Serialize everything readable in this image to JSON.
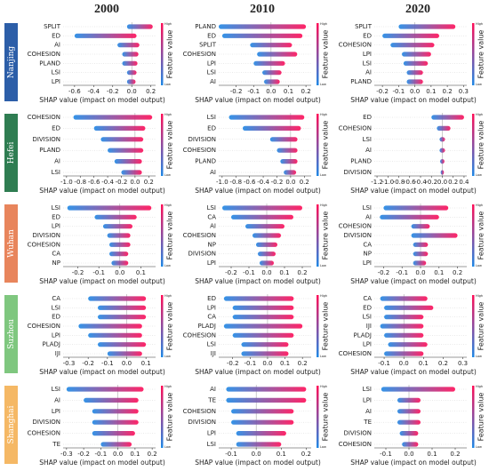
{
  "column_titles": [
    "2000",
    "2010",
    "2020"
  ],
  "row_labels": [
    {
      "text": "Nanjing",
      "color": "#2c5ea8"
    },
    {
      "text": "Hefei",
      "color": "#2f7d52"
    },
    {
      "text": "Wuhan",
      "color": "#e8855c"
    },
    {
      "text": "Suzhou",
      "color": "#7fc77f"
    },
    {
      "text": "Shanghai",
      "color": "#f5b865"
    }
  ],
  "chart_data": [
    {
      "type": "beeswarm",
      "categories": [
        "SPLIT",
        "ED",
        "AI",
        "COHESION",
        "PLAND",
        "LSI",
        "LPI"
      ],
      "values": [
        [
          -0.05,
          0.22
        ],
        [
          -0.6,
          0.05
        ],
        [
          -0.15,
          0.08
        ],
        [
          -0.1,
          0.07
        ],
        [
          -0.1,
          0.06
        ],
        [
          -0.05,
          0.05
        ],
        [
          -0.05,
          0.04
        ]
      ],
      "xlim": [
        -0.72,
        0.25
      ],
      "xticks": [
        -0.6,
        -0.4,
        -0.2,
        {
          "value": 0,
          "label": "0.0"
        },
        0.2
      ],
      "xlabel": "SHAP value (impact on model output)",
      "colorbar_label": "Feature value",
      "high": "High",
      "low": "Low",
      "colormap": [
        "#1e88e5",
        "#ff0d57"
      ]
    },
    {
      "type": "beeswarm",
      "categories": [
        "PLAND",
        "ED",
        "SPLIT",
        "COHESION",
        "LPI",
        "LSI",
        "AI"
      ],
      "values": [
        [
          -0.3,
          0.2
        ],
        [
          -0.28,
          0.18
        ],
        [
          -0.12,
          0.12
        ],
        [
          -0.08,
          0.15
        ],
        [
          -0.1,
          0.08
        ],
        [
          -0.05,
          0.06
        ],
        [
          -0.04,
          0.05
        ]
      ],
      "xlim": [
        -0.3,
        0.23
      ],
      "xticks": [
        -0.2,
        -0.1,
        {
          "value": 0,
          "label": "0.0"
        },
        0.1,
        0.2
      ],
      "xlabel": "SHAP value (impact on model output)",
      "colorbar_label": "Feature value",
      "high": "High",
      "low": "Low",
      "colormap": [
        "#1e88e5",
        "#ff0d57"
      ]
    },
    {
      "type": "beeswarm",
      "categories": [
        "SPLIT",
        "ED",
        "COHESION",
        "LPI",
        "LSI",
        "AI",
        "PLAND"
      ],
      "values": [
        [
          -0.1,
          0.25
        ],
        [
          -0.2,
          0.15
        ],
        [
          -0.15,
          0.12
        ],
        [
          -0.08,
          0.1
        ],
        [
          -0.07,
          0.08
        ],
        [
          -0.05,
          0.05
        ],
        [
          -0.05,
          0.05
        ]
      ],
      "xlim": [
        -0.25,
        0.32
      ],
      "xticks": [
        -0.2,
        -0.1,
        {
          "value": 0,
          "label": "0.0"
        },
        0.1,
        0.2,
        0.3
      ],
      "xlabel": "SHAP value (impact on model output)",
      "colorbar_label": "Feature value",
      "high": "High",
      "low": "Low",
      "colormap": [
        "#1e88e5",
        "#ff0d57"
      ]
    },
    {
      "type": "beeswarm",
      "categories": [
        "COHESION",
        "ED",
        "DIVISION",
        "PLAND",
        "AI",
        "LSI"
      ],
      "values": [
        [
          -0.9,
          0.25
        ],
        [
          -0.6,
          0.15
        ],
        [
          -0.5,
          0.12
        ],
        [
          -0.4,
          0.12
        ],
        [
          -0.3,
          0.1
        ],
        [
          -0.2,
          0.1
        ]
      ],
      "xlim": [
        -1.05,
        0.3
      ],
      "xticks": [
        {
          "value": -1,
          "label": "-1.0"
        },
        -0.8,
        -0.6,
        -0.4,
        -0.2,
        {
          "value": 0,
          "label": "0.0"
        },
        0.2
      ],
      "xlabel": "SHAP value (impact on model output)",
      "colorbar_label": "Feature value",
      "high": "High",
      "low": "Low",
      "colormap": [
        "#1e88e5",
        "#ff0d57"
      ]
    },
    {
      "type": "beeswarm",
      "categories": [
        "LSI",
        "ED",
        "DIVISION",
        "COHESION",
        "PLAND",
        "AI"
      ],
      "values": [
        [
          -0.9,
          0.2
        ],
        [
          -0.7,
          0.15
        ],
        [
          -0.3,
          0.1
        ],
        [
          -0.2,
          0.1
        ],
        [
          -0.15,
          0.1
        ],
        [
          -0.1,
          0.08
        ]
      ],
      "xlim": [
        -1.05,
        0.3
      ],
      "xticks": [
        {
          "value": -1,
          "label": "-1.0"
        },
        -0.8,
        -0.6,
        -0.4,
        -0.2,
        {
          "value": 0,
          "label": "0.0"
        },
        0.2
      ],
      "xlabel": "SHAP value (impact on model output)",
      "colorbar_label": "Feature value",
      "high": "High",
      "low": "Low",
      "colormap": [
        "#1e88e5",
        "#ff0d57"
      ]
    },
    {
      "type": "beeswarm",
      "categories": [
        "ED",
        "COHESION",
        "LSI",
        "AI",
        "PLAND",
        "DIVISION"
      ],
      "values": [
        [
          -0.2,
          0.4
        ],
        [
          -0.1,
          0.15
        ],
        [
          -0.05,
          0.05
        ],
        [
          -0.05,
          0.05
        ],
        [
          -0.04,
          0.04
        ],
        [
          -0.03,
          0.03
        ]
      ],
      "xlim": [
        -1.25,
        0.45
      ],
      "xticks": [
        -1.2,
        {
          "value": -1,
          "label": "-1.0"
        },
        -0.8,
        -0.6,
        -0.4,
        -0.2,
        {
          "value": 0,
          "label": "0.0"
        },
        0.2,
        0.4
      ],
      "xlabel": "SHAP value (impact on model output)",
      "colorbar_label": "Feature value",
      "high": "High",
      "low": "Low",
      "colormap": [
        "#1e88e5",
        "#ff0d57"
      ]
    },
    {
      "type": "beeswarm",
      "categories": [
        "LSI",
        "ED",
        "LPI",
        "DIVISION",
        "COHESION",
        "CA",
        "NP"
      ],
      "values": [
        [
          -0.25,
          0.15
        ],
        [
          -0.12,
          0.08
        ],
        [
          -0.08,
          0.06
        ],
        [
          -0.06,
          0.05
        ],
        [
          -0.05,
          0.05
        ],
        [
          -0.05,
          0.04
        ],
        [
          -0.04,
          0.04
        ]
      ],
      "xlim": [
        -0.27,
        0.17
      ],
      "xticks": [
        -0.2,
        -0.1,
        {
          "value": 0,
          "label": "0.0"
        },
        0.1
      ],
      "xlabel": "SHAP value (impact on model output)",
      "colorbar_label": "Feature value",
      "high": "High",
      "low": "Low",
      "colormap": [
        "#1e88e5",
        "#ff0d57"
      ]
    },
    {
      "type": "beeswarm",
      "categories": [
        "LSI",
        "CA",
        "AI",
        "COHESION",
        "NP",
        "DIVISION",
        "LPI"
      ],
      "values": [
        [
          -0.25,
          0.2
        ],
        [
          -0.2,
          0.15
        ],
        [
          -0.12,
          0.1
        ],
        [
          -0.08,
          0.08
        ],
        [
          -0.06,
          0.06
        ],
        [
          -0.05,
          0.05
        ],
        [
          -0.04,
          0.04
        ]
      ],
      "xlim": [
        -0.27,
        0.25
      ],
      "xticks": [
        -0.2,
        -0.1,
        {
          "value": 0,
          "label": "0.0"
        },
        0.1,
        0.2
      ],
      "xlabel": "SHAP value (impact on model output)",
      "colorbar_label": "Feature value",
      "high": "High",
      "low": "Low",
      "colormap": [
        "#1e88e5",
        "#ff0d57"
      ]
    },
    {
      "type": "beeswarm",
      "categories": [
        "LSI",
        "AI",
        "COHESION",
        "DIVISION",
        "CA",
        "NP",
        "LPI"
      ],
      "values": [
        [
          -0.2,
          0.15
        ],
        [
          -0.22,
          0.1
        ],
        [
          -0.05,
          0.05
        ],
        [
          -0.05,
          0.2
        ],
        [
          -0.04,
          0.04
        ],
        [
          -0.04,
          0.04
        ],
        [
          -0.04,
          0.03
        ]
      ],
      "xlim": [
        -0.25,
        0.25
      ],
      "xticks": [
        -0.2,
        -0.1,
        {
          "value": 0,
          "label": "0.0"
        },
        0.1,
        0.2
      ],
      "xlabel": "SHAP value (impact on model output)",
      "colorbar_label": "Feature value",
      "high": "High",
      "low": "Low",
      "colormap": [
        "#1e88e5",
        "#ff0d57"
      ]
    },
    {
      "type": "beeswarm",
      "categories": [
        "CA",
        "LSI",
        "ED",
        "COHESION",
        "LPI",
        "PLADJ",
        "IJI"
      ],
      "values": [
        [
          -0.2,
          0.1
        ],
        [
          -0.15,
          0.1
        ],
        [
          -0.15,
          0.1
        ],
        [
          -0.25,
          0.08
        ],
        [
          -0.2,
          0.08
        ],
        [
          -0.15,
          0.1
        ],
        [
          -0.1,
          0.08
        ]
      ],
      "xlim": [
        -0.33,
        0.15
      ],
      "xticks": [
        -0.3,
        -0.2,
        -0.1,
        {
          "value": 0,
          "label": "0.0"
        },
        0.1
      ],
      "xlabel": "SHAP value (impact on model output)",
      "colorbar_label": "Feature value",
      "high": "High",
      "low": "Low",
      "colormap": [
        "#1e88e5",
        "#ff0d57"
      ]
    },
    {
      "type": "beeswarm",
      "categories": [
        "ED",
        "LPI",
        "CA",
        "PLADJ",
        "COHESION",
        "LSI",
        "IJI"
      ],
      "values": [
        [
          -0.25,
          0.15
        ],
        [
          -0.2,
          0.15
        ],
        [
          -0.2,
          0.15
        ],
        [
          -0.25,
          0.2
        ],
        [
          -0.2,
          0.15
        ],
        [
          -0.15,
          0.12
        ],
        [
          -0.15,
          0.12
        ]
      ],
      "xlim": [
        -0.28,
        0.25
      ],
      "xticks": [
        -0.2,
        -0.1,
        {
          "value": 0,
          "label": "0.0"
        },
        0.1,
        0.2
      ],
      "xlabel": "SHAP value (impact on model output)",
      "colorbar_label": "Feature value",
      "high": "High",
      "low": "Low",
      "colormap": [
        "#1e88e5",
        "#ff0d57"
      ]
    },
    {
      "type": "beeswarm",
      "categories": [
        "CA",
        "ED",
        "LSI",
        "IJI",
        "PLADJ",
        "LPI",
        "COHESION"
      ],
      "values": [
        [
          -0.12,
          0.12
        ],
        [
          -0.1,
          0.15
        ],
        [
          -0.1,
          0.1
        ],
        [
          -0.12,
          0.1
        ],
        [
          -0.1,
          0.1
        ],
        [
          -0.08,
          0.12
        ],
        [
          -0.1,
          0.1
        ]
      ],
      "xlim": [
        -0.15,
        0.32
      ],
      "xticks": [
        -0.1,
        {
          "value": 0,
          "label": "0.0"
        },
        0.1,
        0.2,
        0.3
      ],
      "xlabel": "SHAP value (impact on model output)",
      "colorbar_label": "Feature value",
      "high": "High",
      "low": "Low",
      "colormap": [
        "#1e88e5",
        "#ff0d57"
      ]
    },
    {
      "type": "beeswarm",
      "categories": [
        "LSI",
        "AI",
        "LPI",
        "DIVISION",
        "COHESION",
        "TE"
      ],
      "values": [
        [
          -0.3,
          0.15
        ],
        [
          -0.2,
          0.12
        ],
        [
          -0.15,
          0.12
        ],
        [
          -0.15,
          0.12
        ],
        [
          -0.15,
          0.1
        ],
        [
          -0.1,
          0.08
        ]
      ],
      "xlim": [
        -0.32,
        0.22
      ],
      "xticks": [
        -0.3,
        -0.2,
        -0.1,
        {
          "value": 0,
          "label": "0.0"
        },
        0.1,
        0.2
      ],
      "xlabel": "SHAP value (impact on model output)",
      "colorbar_label": "Feature value",
      "high": "High",
      "low": "Low",
      "colormap": [
        "#1e88e5",
        "#ff0d57"
      ]
    },
    {
      "type": "beeswarm",
      "categories": [
        "AI",
        "TE",
        "COHESION",
        "DIVISION",
        "LPI",
        "LSI"
      ],
      "values": [
        [
          -0.12,
          0.2
        ],
        [
          -0.12,
          0.2
        ],
        [
          -0.1,
          0.15
        ],
        [
          -0.1,
          0.15
        ],
        [
          -0.08,
          0.12
        ],
        [
          -0.08,
          0.1
        ]
      ],
      "xlim": [
        -0.15,
        0.22
      ],
      "xticks": [
        -0.1,
        {
          "value": 0,
          "label": "0.0"
        },
        0.1,
        0.2
      ],
      "xlabel": "SHAP value (impact on model output)",
      "colorbar_label": "Feature value",
      "high": "High",
      "low": "Low",
      "colormap": [
        "#1e88e5",
        "#ff0d57"
      ]
    },
    {
      "type": "beeswarm",
      "categories": [
        "LSI",
        "LPI",
        "AI",
        "TE",
        "DIVISION",
        "COHESION"
      ],
      "values": [
        [
          -0.12,
          0.2
        ],
        [
          -0.05,
          0.05
        ],
        [
          -0.05,
          0.05
        ],
        [
          -0.05,
          0.05
        ],
        [
          -0.04,
          0.04
        ],
        [
          -0.03,
          0.04
        ]
      ],
      "xlim": [
        -0.15,
        0.25
      ],
      "xticks": [
        -0.1,
        {
          "value": 0,
          "label": "0.0"
        },
        0.1,
        0.2
      ],
      "xlabel": "SHAP value (impact on model output)",
      "colorbar_label": "Feature value",
      "high": "High",
      "low": "Low",
      "colormap": [
        "#1e88e5",
        "#ff0d57"
      ]
    }
  ]
}
